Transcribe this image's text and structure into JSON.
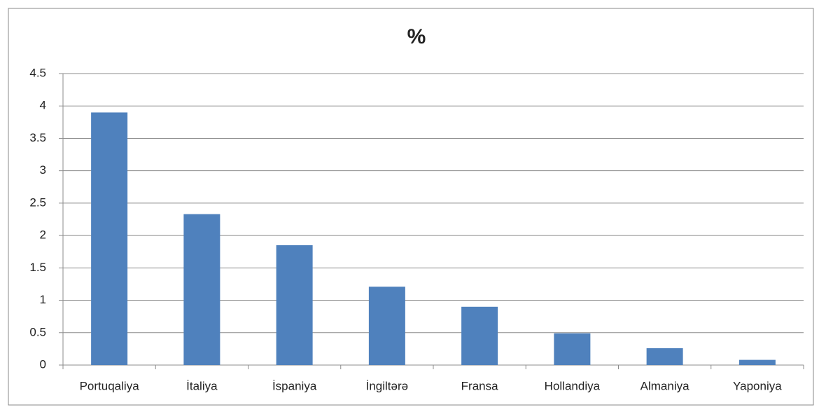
{
  "chart_data": {
    "type": "bar",
    "title": "%",
    "categories": [
      "Portuqaliya",
      "İtaliya",
      "İspaniya",
      "İngiltərə",
      "Fransa",
      "Hollandiya",
      "Almaniya",
      "Yaponiya"
    ],
    "values": [
      3.9,
      2.33,
      1.85,
      1.21,
      0.9,
      0.49,
      0.26,
      0.08
    ],
    "color": "#4f81bd",
    "ylim": [
      0,
      4.5
    ],
    "yticks": [
      0,
      0.5,
      1,
      1.5,
      2,
      2.5,
      3,
      3.5,
      4,
      4.5
    ],
    "grid": true
  }
}
